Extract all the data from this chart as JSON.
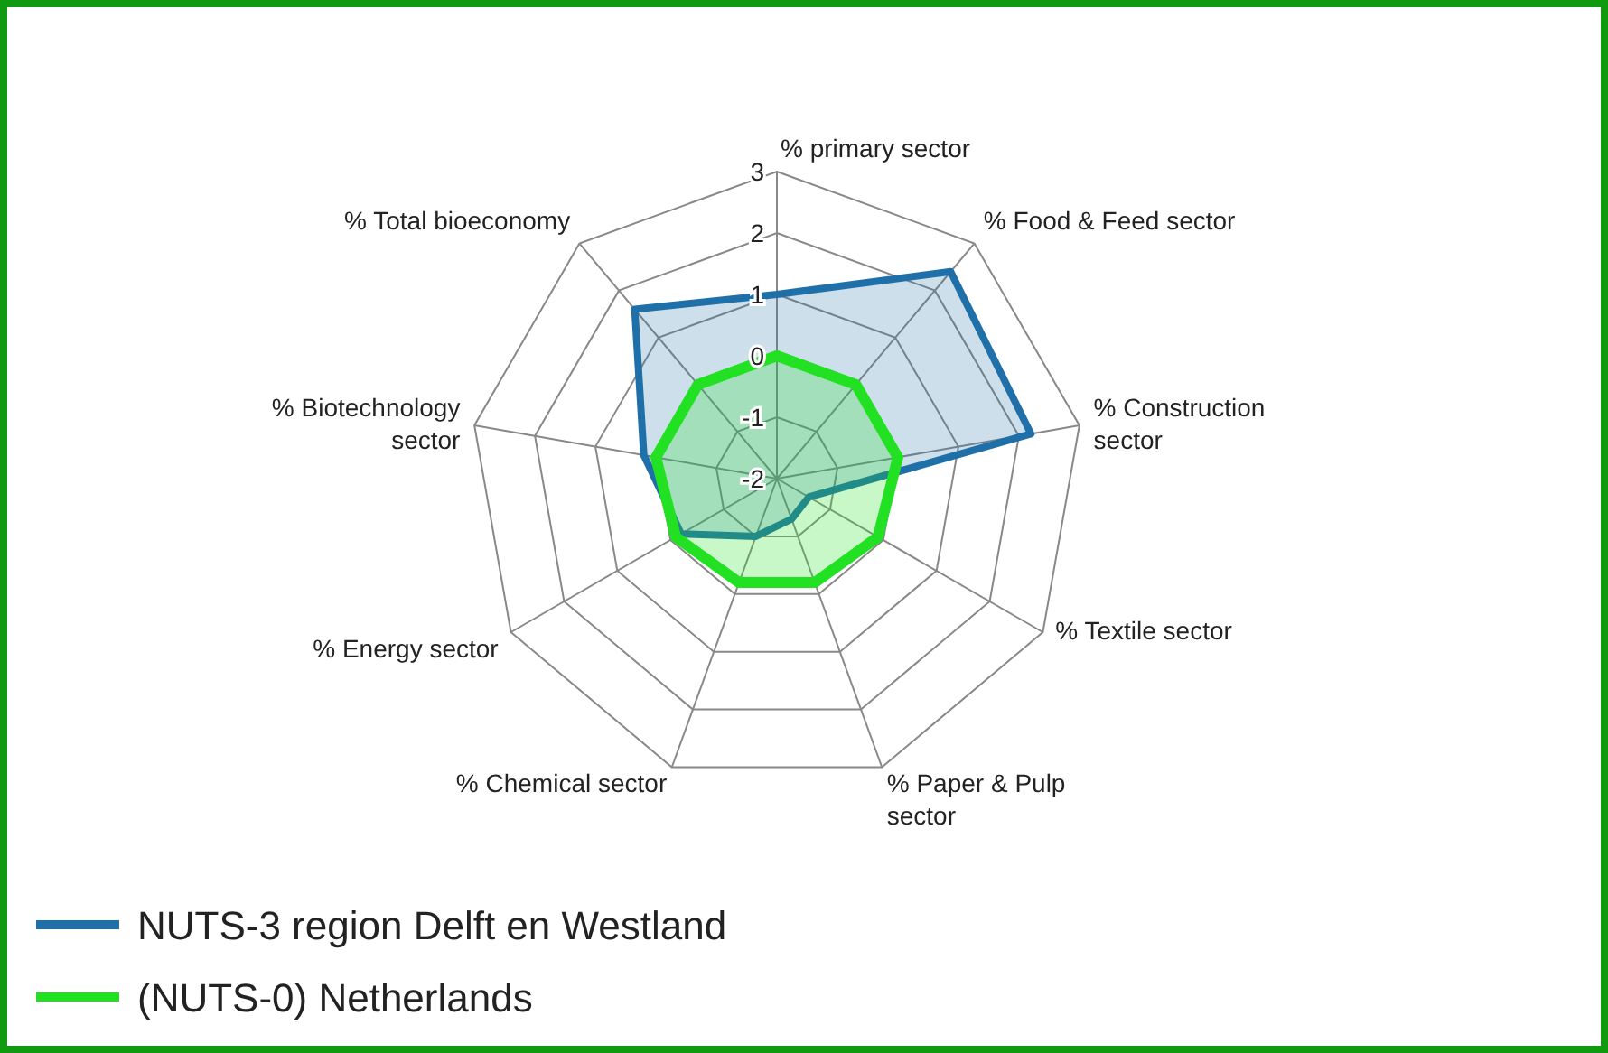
{
  "chart_data": {
    "type": "radar",
    "categories": [
      "% primary sector",
      "% Food & Feed sector",
      "% Construction sector",
      "% Textile sector",
      "% Paper & Pulp sector",
      "% Chemical sector",
      "% Energy sector",
      "% Biotechnology sector",
      "% Total bioeconomy"
    ],
    "ylim": [
      -2,
      3
    ],
    "yticks": [
      -2,
      -1,
      0,
      1,
      2,
      3
    ],
    "grid": true,
    "legend": "bottom left",
    "series": [
      {
        "name": "NUTS-3 region Delft en Westland",
        "color": "#1f6fa8",
        "values": [
          1,
          2.4,
          2.2,
          -1.4,
          -1.3,
          -1.0,
          -0.2,
          0.2,
          1.6
        ]
      },
      {
        "name": "(NUTS-0) Netherlands",
        "color": "#22e022",
        "values": [
          0,
          0,
          0,
          -0.1,
          -0.2,
          -0.2,
          -0.1,
          0,
          0
        ]
      }
    ]
  }
}
